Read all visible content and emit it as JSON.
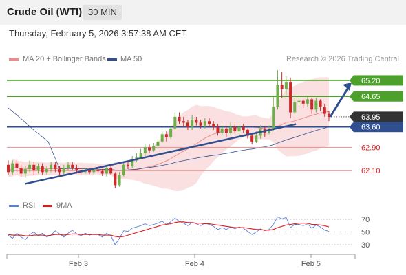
{
  "header": {
    "title": "Crude Oil (WTI)",
    "timeframe": "30 MIN"
  },
  "datetime": "Thursday, February 5, 2026 3:57:38 AM CET",
  "legend": {
    "items": [
      {
        "label": "MA 20 + Bollinger Bands",
        "color": "#f08a8a"
      },
      {
        "label": "MA 50",
        "color": "#2f4f8f"
      }
    ],
    "credit": "Research © 2026 Trading Central"
  },
  "rsi_legend": {
    "items": [
      {
        "label": "RSI",
        "color": "#5b7fd6"
      },
      {
        "label": "9MA",
        "color": "#dd1c1c"
      }
    ]
  },
  "colors": {
    "support": "#2f4f8f",
    "resistance": "#4ea02c",
    "current": "#333333",
    "bollinger": "#f9dada",
    "ma20": "#f08a8a",
    "bull": "#6fae4b",
    "bear": "#cc2a2a"
  },
  "chart_data": [
    {
      "type": "candlestick",
      "title": "Crude Oil (WTI)",
      "interval": "30 MIN",
      "x_ticks": [
        "Feb 3",
        "Feb 4",
        "Feb 5"
      ],
      "ylim": [
        61.35,
        65.6
      ],
      "horizontal_levels": [
        {
          "label": "65.20",
          "value": 65.2,
          "kind": "resistance"
        },
        {
          "label": "64.65",
          "value": 64.65,
          "kind": "resistance"
        },
        {
          "label": "63.95",
          "value": 63.95,
          "kind": "current"
        },
        {
          "label": "63.60",
          "value": 63.6,
          "kind": "support"
        },
        {
          "label": "62.90",
          "value": 62.9,
          "kind": "line"
        },
        {
          "label": "62.10",
          "value": 62.1,
          "kind": "line"
        }
      ],
      "trendline": {
        "from": {
          "bar": 4,
          "value": 61.65
        },
        "to": {
          "bar": 66,
          "value": 63.65
        }
      },
      "forecast_arrow": {
        "from_value": 63.95,
        "to_value": 65.2
      },
      "candles": [
        [
          62.3,
          62.05,
          62.45,
          61.95
        ],
        [
          62.05,
          62.35,
          62.45,
          61.95
        ],
        [
          62.35,
          62.2,
          62.5,
          62.05
        ],
        [
          62.2,
          62.0,
          62.3,
          61.9
        ],
        [
          62.0,
          62.15,
          62.25,
          61.85
        ],
        [
          62.15,
          62.3,
          62.45,
          62.05
        ],
        [
          62.3,
          62.1,
          62.4,
          61.95
        ],
        [
          62.1,
          62.25,
          62.35,
          62.0
        ],
        [
          62.25,
          62.05,
          62.35,
          61.95
        ],
        [
          62.05,
          62.15,
          62.25,
          61.95
        ],
        [
          62.15,
          62.3,
          62.4,
          62.05
        ],
        [
          62.3,
          62.15,
          62.4,
          62.05
        ],
        [
          62.15,
          62.05,
          62.25,
          61.95
        ],
        [
          62.05,
          62.2,
          62.3,
          61.95
        ],
        [
          62.2,
          62.3,
          62.4,
          62.1
        ],
        [
          62.3,
          62.2,
          62.4,
          62.1
        ],
        [
          62.2,
          62.1,
          62.3,
          62.0
        ],
        [
          62.1,
          62.05,
          62.2,
          61.95
        ],
        [
          62.05,
          62.12,
          62.2,
          61.98
        ],
        [
          62.12,
          62.05,
          62.18,
          61.98
        ],
        [
          62.05,
          62.12,
          62.2,
          61.98
        ],
        [
          62.12,
          62.08,
          62.2,
          62.0
        ],
        [
          62.08,
          62.0,
          62.15,
          61.92
        ],
        [
          62.0,
          62.2,
          62.25,
          61.9
        ],
        [
          62.2,
          62.0,
          62.28,
          61.95
        ],
        [
          62.0,
          61.6,
          62.05,
          61.5
        ],
        [
          61.6,
          61.95,
          62.05,
          61.55
        ],
        [
          61.95,
          62.3,
          62.4,
          61.9
        ],
        [
          62.3,
          62.25,
          62.45,
          62.15
        ],
        [
          62.25,
          62.45,
          62.6,
          62.2
        ],
        [
          62.45,
          62.55,
          62.7,
          62.4
        ],
        [
          62.55,
          62.7,
          62.85,
          62.5
        ],
        [
          62.7,
          62.9,
          63.0,
          62.6
        ],
        [
          62.9,
          62.8,
          63.0,
          62.7
        ],
        [
          62.8,
          62.95,
          63.05,
          62.75
        ],
        [
          62.95,
          63.1,
          63.2,
          62.85
        ],
        [
          63.1,
          63.35,
          63.45,
          63.05
        ],
        [
          63.35,
          63.25,
          63.45,
          63.1
        ],
        [
          63.25,
          63.55,
          63.6,
          63.2
        ],
        [
          63.55,
          63.95,
          64.1,
          63.5
        ],
        [
          63.95,
          63.8,
          64.1,
          63.7
        ],
        [
          63.8,
          63.75,
          63.95,
          63.6
        ],
        [
          63.75,
          63.6,
          63.85,
          63.5
        ],
        [
          63.6,
          63.85,
          64.0,
          63.5
        ],
        [
          63.85,
          63.75,
          63.95,
          63.65
        ],
        [
          63.75,
          63.65,
          63.85,
          63.55
        ],
        [
          63.65,
          63.8,
          63.9,
          63.55
        ],
        [
          63.8,
          63.7,
          63.9,
          63.6
        ],
        [
          63.7,
          63.6,
          63.8,
          63.5
        ],
        [
          63.6,
          63.4,
          63.7,
          63.3
        ],
        [
          63.4,
          63.55,
          63.65,
          63.3
        ],
        [
          63.55,
          63.4,
          63.6,
          63.25
        ],
        [
          63.4,
          63.6,
          63.75,
          63.35
        ],
        [
          63.6,
          63.45,
          63.7,
          63.4
        ],
        [
          63.45,
          63.6,
          63.7,
          63.35
        ],
        [
          63.6,
          63.5,
          63.7,
          63.4
        ],
        [
          63.5,
          63.3,
          63.55,
          63.2
        ],
        [
          63.3,
          63.1,
          63.4,
          63.0
        ],
        [
          63.1,
          63.3,
          63.45,
          63.05
        ],
        [
          63.3,
          63.55,
          63.65,
          63.2
        ],
        [
          63.55,
          63.4,
          63.6,
          63.25
        ],
        [
          63.4,
          63.5,
          63.65,
          63.35
        ],
        [
          63.5,
          64.3,
          64.65,
          63.45
        ],
        [
          64.3,
          65.05,
          65.55,
          64.2
        ],
        [
          65.05,
          64.9,
          65.5,
          64.6
        ],
        [
          64.9,
          65.15,
          65.35,
          64.7
        ],
        [
          65.15,
          64.1,
          65.3,
          63.9
        ],
        [
          64.1,
          64.45,
          64.6,
          64.05
        ],
        [
          64.45,
          64.5,
          64.6,
          64.3
        ],
        [
          64.5,
          64.4,
          64.55,
          64.25
        ],
        [
          64.4,
          64.55,
          64.65,
          64.3
        ],
        [
          64.55,
          64.2,
          64.6,
          64.05
        ],
        [
          64.2,
          64.5,
          64.6,
          64.1
        ],
        [
          64.5,
          64.3,
          64.55,
          64.15
        ],
        [
          64.3,
          64.05,
          64.4,
          63.95
        ],
        [
          64.05,
          63.95,
          64.15,
          63.8
        ]
      ]
    },
    {
      "type": "line",
      "title": "RSI",
      "y_ticks": [
        "70",
        "50",
        "30"
      ],
      "ylim": [
        20,
        80
      ],
      "series": [
        {
          "name": "RSI",
          "values": [
            45,
            40,
            48,
            42,
            38,
            46,
            50,
            44,
            48,
            42,
            45,
            52,
            47,
            42,
            48,
            53,
            47,
            44,
            48,
            45,
            47,
            46,
            42,
            48,
            44,
            30,
            40,
            52,
            51,
            56,
            58,
            60,
            63,
            60,
            62,
            64,
            67,
            62,
            66,
            72,
            67,
            64,
            60,
            65,
            63,
            60,
            64,
            62,
            59,
            54,
            57,
            54,
            58,
            55,
            58,
            56,
            51,
            46,
            50,
            55,
            52,
            54,
            62,
            74,
            71,
            73,
            57,
            62,
            62,
            60,
            63,
            56,
            61,
            58,
            53,
            51
          ]
        },
        {
          "name": "9MA",
          "values": [
            46,
            45,
            45,
            45,
            44,
            44,
            45,
            45,
            45,
            44,
            45,
            46,
            46,
            45,
            46,
            47,
            47,
            46,
            46,
            46,
            46,
            46,
            45,
            45,
            45,
            43,
            42,
            43,
            45,
            47,
            49,
            51,
            53,
            55,
            57,
            59,
            61,
            62,
            63,
            65,
            66,
            66,
            65,
            65,
            64,
            64,
            63,
            63,
            62,
            61,
            60,
            59,
            58,
            57,
            57,
            57,
            56,
            55,
            54,
            54,
            53,
            53,
            54,
            57,
            59,
            61,
            62,
            63,
            64,
            64,
            64,
            62,
            62,
            61,
            60,
            58
          ]
        }
      ]
    }
  ]
}
